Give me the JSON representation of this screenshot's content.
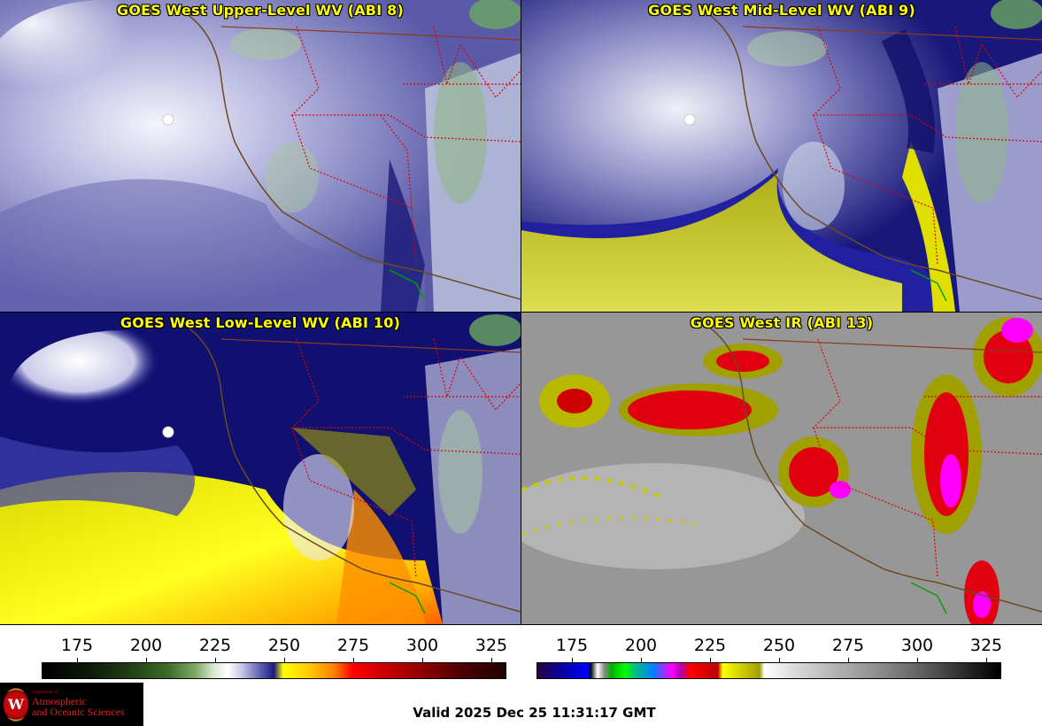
{
  "panels": [
    {
      "title": "GOES West Upper-Level WV (ABI 8)"
    },
    {
      "title": "GOES West Mid-Level WV (ABI 9)"
    },
    {
      "title": "GOES West Low-Level WV (ABI 10)"
    },
    {
      "title": "GOES West IR (ABI 13)"
    }
  ],
  "colorbars": [
    {
      "ticks": [
        "175",
        "200",
        "225",
        "250",
        "275",
        "300",
        "325"
      ]
    },
    {
      "ticks": [
        "175",
        "200",
        "225",
        "250",
        "275",
        "300",
        "325"
      ]
    }
  ],
  "logo": {
    "line1": "Department of",
    "line2": "Atmospheric",
    "line3": "and Oceanic Sciences"
  },
  "valid_time": "Valid 2025 Dec 25 11:31:17 GMT",
  "colors": {
    "title_text": "#ffff00",
    "state_borders": "#ff0000",
    "coastline": "#8b4513",
    "border_green": "#00a000"
  }
}
